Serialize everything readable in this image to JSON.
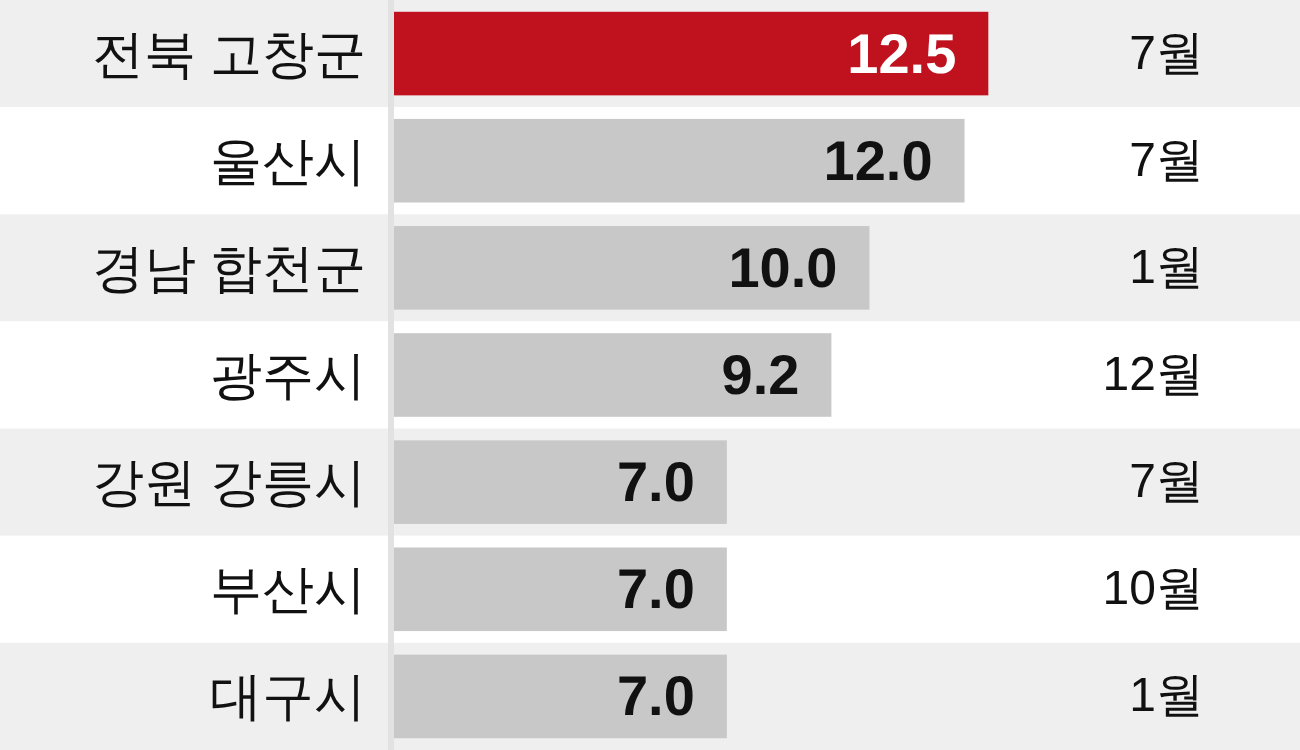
{
  "chart_data": {
    "type": "bar",
    "orientation": "horizontal",
    "categories": [
      "전북 고창군",
      "울산시",
      "경남 합천군",
      "광주시",
      "강원 강릉시",
      "부산시",
      "대구시"
    ],
    "values": [
      12.5,
      12.0,
      10.0,
      9.2,
      7.0,
      7.0,
      7.0
    ],
    "value_labels": [
      "12.5",
      "12.0",
      "10.0",
      "9.2",
      "7.0",
      "7.0",
      "7.0"
    ],
    "colors": [
      "#c0111f",
      "#c8c8c8",
      "#c8c8c8",
      "#c8c8c8",
      "#c8c8c8",
      "#c8c8c8",
      "#c8c8c8"
    ],
    "annotations": [
      "7월",
      "7월",
      "1월",
      "12월",
      "7월",
      "10월",
      "1월"
    ]
  }
}
